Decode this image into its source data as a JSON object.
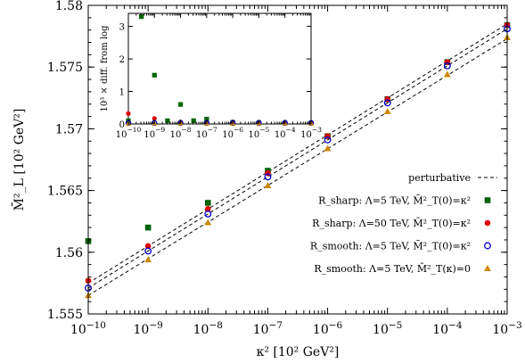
{
  "chart_data": [
    {
      "type": "scatter",
      "title": "",
      "xlabel": "κ² [10² GeV²]",
      "ylabel": "M̄²_L [10² GeV²]",
      "xscale": "log",
      "xlim": [
        1e-10,
        0.001
      ],
      "ylim": [
        1.555,
        1.58
      ],
      "grid": false,
      "x_ticks": [
        {
          "value": 1e-10,
          "label": "10^−10"
        },
        {
          "value": 1e-09,
          "label": "10^−9"
        },
        {
          "value": 1e-08,
          "label": "10^−8"
        },
        {
          "value": 1e-07,
          "label": "10^−7"
        },
        {
          "value": 1e-06,
          "label": "10^−6"
        },
        {
          "value": 1e-05,
          "label": "10^−5"
        },
        {
          "value": 0.0001,
          "label": "10^−4"
        },
        {
          "value": 0.001,
          "label": "10^−3"
        }
      ],
      "y_ticks": [
        {
          "value": 1.555,
          "label": "1.555"
        },
        {
          "value": 1.56,
          "label": "1.56"
        },
        {
          "value": 1.565,
          "label": "1.565"
        },
        {
          "value": 1.57,
          "label": "1.57"
        },
        {
          "value": 1.575,
          "label": "1.575"
        },
        {
          "value": 1.58,
          "label": "1.58"
        }
      ],
      "legend_position": "bottom-right",
      "series": [
        {
          "name": "perturbative",
          "style": "dashed-lines",
          "color": "#000000",
          "lines": [
            {
              "x": [
                1e-10,
                0.001
              ],
              "y": [
                1.5575,
                1.5785
              ]
            },
            {
              "x": [
                1e-10,
                0.001
              ],
              "y": [
                1.5571,
                1.5781
              ]
            },
            {
              "x": [
                1e-10,
                0.001
              ],
              "y": [
                1.5565,
                1.5773
              ]
            }
          ]
        },
        {
          "name": "R_sharp: Λ=5 TeV, M̄²_T(0)=κ²",
          "marker": "square",
          "color": "#006400",
          "x": [
            1e-10,
            1e-09,
            1e-08,
            1e-07,
            1e-06,
            1e-05,
            0.0001,
            0.001
          ],
          "y": [
            1.5609,
            1.562,
            1.564,
            1.5666,
            1.5694,
            1.5724,
            1.5754,
            1.5784
          ]
        },
        {
          "name": "R_sharp: Λ=50 TeV, M̄²_T(0)=κ²",
          "marker": "circle-filled",
          "color": "#dd0000",
          "x": [
            1e-10,
            1e-09,
            1e-08,
            1e-07,
            1e-06,
            1e-05,
            0.0001,
            0.001
          ],
          "y": [
            1.5577,
            1.5605,
            1.5635,
            1.5664,
            1.5694,
            1.5724,
            1.5754,
            1.5784
          ]
        },
        {
          "name": "R_smooth: Λ=5 TeV, M̄²_T(0)=κ²",
          "marker": "circle-open",
          "color": "#0000cc",
          "x": [
            1e-10,
            1e-09,
            1e-08,
            1e-07,
            1e-06,
            1e-05,
            0.0001,
            0.001
          ],
          "y": [
            1.5571,
            1.5601,
            1.5631,
            1.5661,
            1.5691,
            1.5721,
            1.5751,
            1.5781
          ]
        },
        {
          "name": "R_smooth: Λ=5 TeV, M̄²_T(κ)=0",
          "marker": "triangle",
          "color": "#cc8800",
          "x": [
            1e-10,
            1e-09,
            1e-08,
            1e-07,
            1e-06,
            1e-05,
            0.0001,
            0.001
          ],
          "y": [
            1.5565,
            1.5594,
            1.5624,
            1.5654,
            1.5684,
            1.5714,
            1.5744,
            1.5774
          ]
        }
      ]
    },
    {
      "type": "scatter",
      "title": "",
      "xlabel": "",
      "ylabel": "10³ × diff. from log",
      "xscale": "log",
      "xlim": [
        1e-10,
        0.001
      ],
      "ylim": [
        0,
        3.4
      ],
      "x_ticks": [
        {
          "value": 1e-10,
          "label": "10^−10"
        },
        {
          "value": 1e-09,
          "label": "10^−9"
        },
        {
          "value": 1e-08,
          "label": "10^−8"
        },
        {
          "value": 1e-07,
          "label": "10^−7"
        },
        {
          "value": 1e-06,
          "label": "10^−6"
        },
        {
          "value": 1e-05,
          "label": "10^−5"
        },
        {
          "value": 0.0001,
          "label": "10^−4"
        },
        {
          "value": 0.001,
          "label": "10^−3"
        }
      ],
      "y_ticks": [
        {
          "value": 0,
          "label": "0"
        },
        {
          "value": 1,
          "label": "1"
        },
        {
          "value": 2,
          "label": "2"
        },
        {
          "value": 3,
          "label": "3"
        }
      ],
      "series": [
        {
          "marker": "square",
          "color": "#006400",
          "x": [
            1e-10,
            3.16e-10,
            1e-09,
            3.16e-09,
            1e-08,
            3.16e-08,
            1e-07,
            1e-06,
            1e-05,
            0.0001,
            0.001
          ],
          "y": [
            0.1,
            3.3,
            1.5,
            0.1,
            0.6,
            0.1,
            0.15,
            0.05,
            0.04,
            0.03,
            0.03
          ]
        },
        {
          "marker": "circle-filled",
          "color": "#dd0000",
          "x": [
            1e-10,
            1e-09,
            1e-08,
            1e-07,
            1e-06,
            1e-05,
            0.0001,
            0.001
          ],
          "y": [
            0.32,
            0.17,
            0.06,
            0.04,
            0.03,
            0.03,
            0.03,
            0.03
          ]
        },
        {
          "marker": "circle-open",
          "color": "#0000cc",
          "x": [
            1e-10,
            1e-09,
            1e-08,
            1e-07,
            1e-06,
            1e-05,
            0.0001,
            0.001
          ],
          "y": [
            0.03,
            0.03,
            0.03,
            0.03,
            0.03,
            0.03,
            0.03,
            0.03
          ]
        },
        {
          "marker": "triangle",
          "color": "#cc8800",
          "x": [
            1e-10,
            1e-09,
            1e-08,
            1e-07,
            1e-06,
            1e-05,
            0.0001,
            0.001
          ],
          "y": [
            0.02,
            0.02,
            0.02,
            0.02,
            0.02,
            0.02,
            0.02,
            0.02
          ]
        }
      ]
    }
  ]
}
